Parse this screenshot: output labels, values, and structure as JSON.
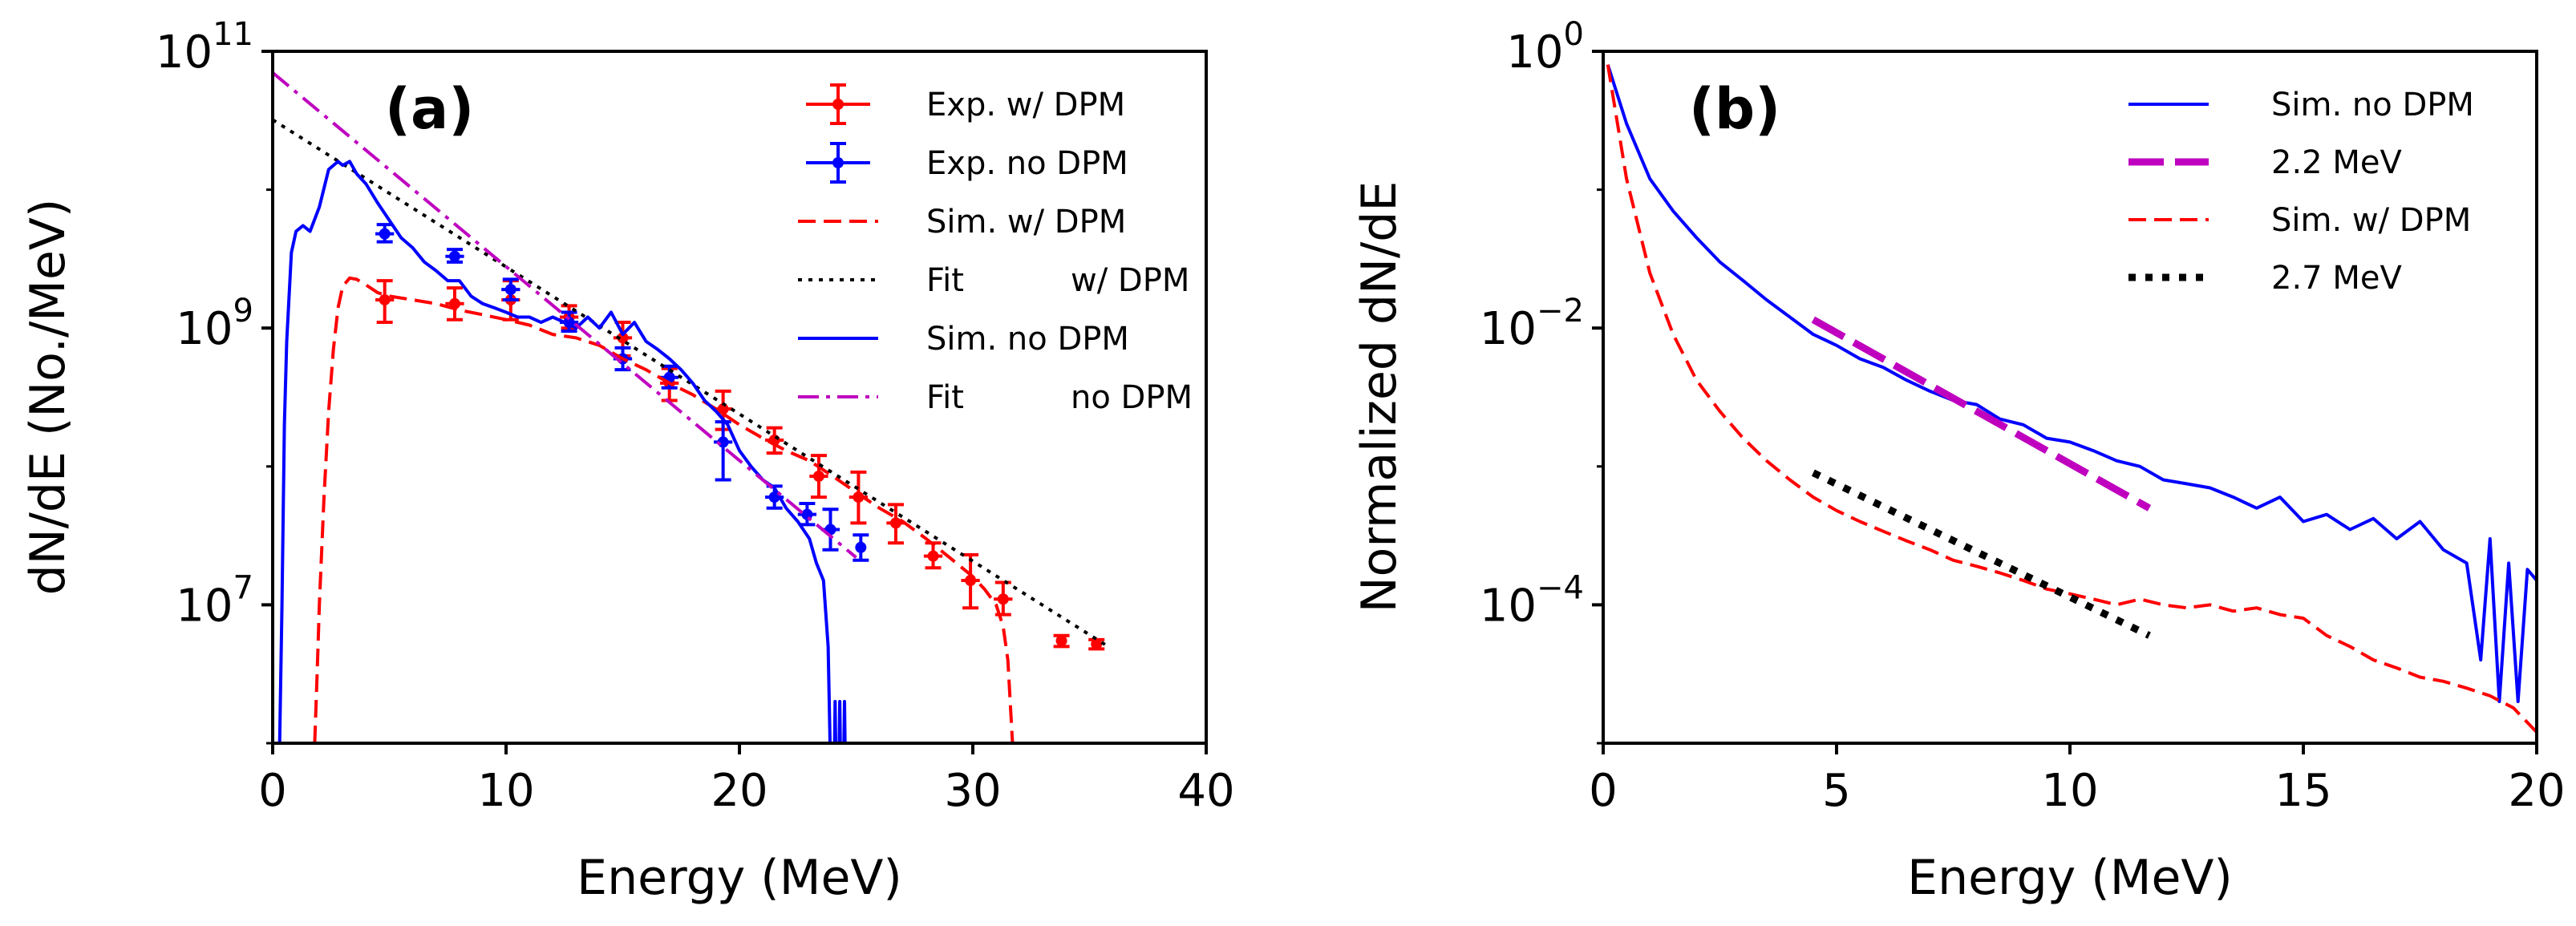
{
  "chart_data": [
    {
      "id": "a",
      "type": "line",
      "panel_label": "(a)",
      "xlabel": "Energy (MeV)",
      "ylabel": "dN/dE (No./MeV)",
      "xscale": "linear",
      "yscale": "log",
      "xlim": [
        0,
        40
      ],
      "ylim_log10": [
        6,
        11
      ],
      "xticks": [
        {
          "v": 0,
          "label": "0"
        },
        {
          "v": 10,
          "label": "10"
        },
        {
          "v": 20,
          "label": "20"
        },
        {
          "v": 30,
          "label": "30"
        },
        {
          "v": 40,
          "label": "40"
        }
      ],
      "yticks": [
        {
          "e": 7,
          "base": "10",
          "exp": "7"
        },
        {
          "e": 9,
          "base": "10",
          "exp": "9"
        },
        {
          "e": 11,
          "base": "10",
          "exp": "11"
        }
      ],
      "legend_position": "top-right",
      "series": [
        {
          "name": "Exp. w/ DPM",
          "legend": [
            "Exp. w/ DPM"
          ],
          "kind": "errorbar",
          "color": "#ff0000",
          "points": [
            {
              "x": 4.8,
              "y": 1600000000.0,
              "yerr_low": 1100000000.0,
              "yerr_high": 2200000000.0,
              "xerr": 0.4
            },
            {
              "x": 7.8,
              "y": 1500000000.0,
              "yerr_low": 1150000000.0,
              "yerr_high": 1950000000.0,
              "xerr": 0.4
            },
            {
              "x": 10.2,
              "y": 1600000000.0,
              "yerr_low": 1150000000.0,
              "yerr_high": 2200000000.0,
              "xerr": 0.4
            },
            {
              "x": 12.7,
              "y": 1200000000.0,
              "yerr_low": 1000000000.0,
              "yerr_high": 1450000000.0,
              "xerr": 0.4
            },
            {
              "x": 15.0,
              "y": 850000000.0,
              "yerr_low": 630000000.0,
              "yerr_high": 1100000000.0,
              "xerr": 0.4
            },
            {
              "x": 17.0,
              "y": 400000000.0,
              "yerr_low": 300000000.0,
              "yerr_high": 510000000.0,
              "xerr": 0.4
            },
            {
              "x": 19.3,
              "y": 260000000.0,
              "yerr_low": 185000000.0,
              "yerr_high": 350000000.0,
              "xerr": 0.4
            },
            {
              "x": 21.5,
              "y": 155000000.0,
              "yerr_low": 125000000.0,
              "yerr_high": 190000000.0,
              "xerr": 0.4
            },
            {
              "x": 23.4,
              "y": 85000000.0,
              "yerr_low": 60000000.0,
              "yerr_high": 120000000.0,
              "xerr": 0.4
            },
            {
              "x": 25.1,
              "y": 60000000.0,
              "yerr_low": 39000000.0,
              "yerr_high": 91000000.0,
              "xerr": 0.4
            },
            {
              "x": 26.7,
              "y": 39000000.0,
              "yerr_low": 28000000.0,
              "yerr_high": 53000000.0,
              "xerr": 0.4
            },
            {
              "x": 28.3,
              "y": 22500000.0,
              "yerr_low": 18500000.0,
              "yerr_high": 28000000.0,
              "xerr": 0.4
            },
            {
              "x": 29.9,
              "y": 15000000.0,
              "yerr_low": 9500000.0,
              "yerr_high": 23000000.0,
              "xerr": 0.4
            },
            {
              "x": 31.3,
              "y": 11000000.0,
              "yerr_low": 8500000.0,
              "yerr_high": 14500000.0,
              "xerr": 0.4
            },
            {
              "x": 33.8,
              "y": 5500000.0,
              "yerr_low": 5000000.0,
              "yerr_high": 6000000.0,
              "xerr": 0.2
            },
            {
              "x": 35.3,
              "y": 5200000.0,
              "yerr_low": 4800000.0,
              "yerr_high": 5600000.0,
              "xerr": 0.2
            }
          ]
        },
        {
          "name": "Exp. no DPM",
          "legend": [
            "Exp. no DPM"
          ],
          "kind": "errorbar",
          "color": "#0000ff",
          "points": [
            {
              "x": 4.8,
              "y": 4800000000.0,
              "yerr_low": 4200000000.0,
              "yerr_high": 5600000000.0,
              "xerr": 0.4
            },
            {
              "x": 7.8,
              "y": 3300000000.0,
              "yerr_low": 3000000000.0,
              "yerr_high": 3700000000.0,
              "xerr": 0.4
            },
            {
              "x": 10.2,
              "y": 1900000000.0,
              "yerr_low": 1600000000.0,
              "yerr_high": 2250000000.0,
              "xerr": 0.4
            },
            {
              "x": 12.7,
              "y": 1100000000.0,
              "yerr_low": 950000000.0,
              "yerr_high": 1300000000.0,
              "xerr": 0.4
            },
            {
              "x": 15.0,
              "y": 600000000.0,
              "yerr_low": 500000000.0,
              "yerr_high": 720000000.0,
              "xerr": 0.4
            },
            {
              "x": 17.0,
              "y": 440000000.0,
              "yerr_low": 370000000.0,
              "yerr_high": 530000000.0,
              "xerr": 0.4
            },
            {
              "x": 19.3,
              "y": 150000000.0,
              "yerr_low": 80000000.0,
              "yerr_high": 210000000.0,
              "xerr": 0.4
            },
            {
              "x": 21.5,
              "y": 60000000.0,
              "yerr_low": 50000000.0,
              "yerr_high": 72000000.0,
              "xerr": 0.4
            },
            {
              "x": 22.9,
              "y": 45000000.0,
              "yerr_low": 38000000.0,
              "yerr_high": 54000000.0,
              "xerr": 0.4
            },
            {
              "x": 23.9,
              "y": 35000000.0,
              "yerr_low": 25000000.0,
              "yerr_high": 49000000.0,
              "xerr": 0.4
            },
            {
              "x": 25.2,
              "y": 26000000.0,
              "yerr_low": 21000000.0,
              "yerr_high": 32000000.0,
              "xerr": 0.2
            }
          ]
        },
        {
          "name": "Sim. w/ DPM",
          "legend": [
            "Sim. w/ DPM"
          ],
          "kind": "line",
          "style": "dashed",
          "color": "#ff0000",
          "x": [
            1.8,
            1.9,
            2.0,
            2.2,
            2.4,
            2.6,
            2.8,
            3.0,
            3.3,
            3.6,
            4.0,
            4.5,
            5.0,
            6.0,
            7.0,
            8.0,
            9.0,
            10.0,
            11.0,
            12.0,
            13.0,
            14.0,
            15.0,
            16.0,
            17.0,
            18.0,
            19.0,
            20.0,
            21.0,
            22.0,
            23.0,
            24.0,
            25.0,
            26.0,
            27.0,
            28.0,
            29.0,
            30.0,
            30.5,
            31.0,
            31.3,
            31.5,
            31.6,
            31.7,
            31.8,
            31.9
          ],
          "y": [
            1000000.0,
            3000000.0,
            10000000.0,
            60000000.0,
            250000000.0,
            700000000.0,
            1400000000.0,
            2000000000.0,
            2300000000.0,
            2250000000.0,
            2050000000.0,
            1800000000.0,
            1700000000.0,
            1600000000.0,
            1500000000.0,
            1350000000.0,
            1250000000.0,
            1150000000.0,
            1050000000.0,
            900000000.0,
            850000000.0,
            750000000.0,
            600000000.0,
            500000000.0,
            400000000.0,
            330000000.0,
            260000000.0,
            200000000.0,
            160000000.0,
            130000000.0,
            110000000.0,
            85000000.0,
            65000000.0,
            50000000.0,
            40000000.0,
            30000000.0,
            22000000.0,
            16000000.0,
            13000000.0,
            10000000.0,
            7000000.0,
            4000000.0,
            2000000.0,
            1000000.0,
            400000.0,
            100000.0
          ]
        },
        {
          "name": "Fit w/ DPM",
          "legend": [
            "Fit",
            "w/ DPM"
          ],
          "kind": "line",
          "style": "dotted",
          "color": "#000000",
          "x": [
            0,
            35.8
          ],
          "y": [
            32000000000.0,
            5000000.0
          ]
        },
        {
          "name": "Sim. no DPM",
          "legend": [
            "Sim. no DPM"
          ],
          "kind": "line",
          "style": "solid",
          "color": "#0000ff",
          "x": [
            0.3,
            0.4,
            0.5,
            0.6,
            0.8,
            1.0,
            1.3,
            1.6,
            2.0,
            2.4,
            2.8,
            3.0,
            3.3,
            3.6,
            4.0,
            4.5,
            5.0,
            5.5,
            6.0,
            6.5,
            7.0,
            7.5,
            8.0,
            8.5,
            9.0,
            9.5,
            10.0,
            10.5,
            11.0,
            11.5,
            12.0,
            12.5,
            13.0,
            13.5,
            14.0,
            14.5,
            15.0,
            15.5,
            16.0,
            16.5,
            17.0,
            17.5,
            18.0,
            18.5,
            19.0,
            19.5,
            20.0,
            20.5,
            21.0,
            21.5,
            22.0,
            22.5,
            23.0,
            23.3,
            23.6,
            23.8,
            24.0,
            24.1,
            24.2,
            24.3,
            24.4,
            24.5,
            24.6
          ],
          "y": [
            1000000.0,
            10000000.0,
            200000000.0,
            800000000.0,
            3500000000.0,
            5000000000.0,
            5500000000.0,
            5000000000.0,
            7500000000.0,
            14000000000.0,
            16000000000.0,
            15000000000.0,
            16000000000.0,
            13000000000.0,
            11000000000.0,
            8000000000.0,
            6000000000.0,
            4500000000.0,
            3800000000.0,
            3000000000.0,
            2600000000.0,
            2200000000.0,
            2200000000.0,
            1700000000.0,
            1500000000.0,
            1400000000.0,
            1300000000.0,
            1200000000.0,
            1200000000.0,
            1100000000.0,
            1200000000.0,
            1100000000.0,
            1000000000.0,
            1200000000.0,
            1000000000.0,
            1300000000.0,
            900000000.0,
            1100000000.0,
            800000000.0,
            700000000.0,
            600000000.0,
            500000000.0,
            400000000.0,
            300000000.0,
            250000000.0,
            200000000.0,
            130000000.0,
            100000000.0,
            80000000.0,
            70000000.0,
            50000000.0,
            40000000.0,
            30000000.0,
            20000000.0,
            15000000.0,
            5000000.0,
            100000.0,
            2000000.0,
            100000.0,
            2000000.0,
            100000.0,
            2000000.0,
            100000.0
          ]
        },
        {
          "name": "Fit no DPM",
          "legend": [
            "Fit",
            "no DPM"
          ],
          "kind": "line",
          "style": "dashdot",
          "color": "#bf00bf",
          "x": [
            0,
            25.0
          ],
          "y": [
            70000000000.0,
            22000000.0
          ]
        }
      ]
    },
    {
      "id": "b",
      "type": "line",
      "panel_label": "(b)",
      "xlabel": "Energy (MeV)",
      "ylabel": "Normalized dN/dE",
      "xscale": "linear",
      "yscale": "log",
      "xlim": [
        0,
        20
      ],
      "ylim_log10": [
        -5,
        0
      ],
      "xticks": [
        {
          "v": 0,
          "label": "0"
        },
        {
          "v": 5,
          "label": "5"
        },
        {
          "v": 10,
          "label": "10"
        },
        {
          "v": 15,
          "label": "15"
        },
        {
          "v": 20,
          "label": "20"
        }
      ],
      "yticks": [
        {
          "e": 0,
          "base": "10",
          "exp": "0"
        },
        {
          "e": -2,
          "base": "10",
          "exp": "−2"
        },
        {
          "e": -4,
          "base": "10",
          "exp": "−4"
        }
      ],
      "legend_position": "top-right",
      "series": [
        {
          "name": "Sim. no DPM",
          "legend": [
            "Sim. no DPM"
          ],
          "kind": "line",
          "style": "solid",
          "color": "#0000ff",
          "x": [
            0.1,
            0.5,
            1.0,
            1.5,
            2.0,
            2.5,
            3.0,
            3.5,
            4.0,
            4.5,
            5.0,
            5.5,
            6.0,
            6.5,
            7.0,
            7.5,
            8.0,
            8.5,
            9.0,
            9.5,
            10.0,
            10.5,
            11.0,
            11.5,
            12.0,
            12.5,
            13.0,
            13.5,
            14.0,
            14.5,
            15.0,
            15.5,
            16.0,
            16.5,
            17.0,
            17.5,
            18.0,
            18.5,
            18.8,
            19.0,
            19.2,
            19.4,
            19.6,
            19.8,
            20.0
          ],
          "y": [
            0.8,
            0.3,
            0.12,
            0.07,
            0.045,
            0.03,
            0.022,
            0.016,
            0.012,
            0.009,
            0.0075,
            0.006,
            0.0052,
            0.0042,
            0.0035,
            0.003,
            0.0028,
            0.0022,
            0.002,
            0.0016,
            0.0015,
            0.0013,
            0.0011,
            0.001,
            0.0008,
            0.00075,
            0.0007,
            0.0006,
            0.0005,
            0.0006,
            0.0004,
            0.00045,
            0.00035,
            0.00042,
            0.0003,
            0.0004,
            0.00025,
            0.0002,
            4e-05,
            0.0003,
            2e-05,
            0.0002,
            2e-05,
            0.00018,
            0.00015
          ]
        },
        {
          "name": "2.2 MeV",
          "legend": [
            "2.2 MeV"
          ],
          "kind": "line",
          "style": "dashed",
          "color": "#bf00bf",
          "x": [
            4.5,
            11.7
          ],
          "y": [
            0.0115,
            0.0005
          ]
        },
        {
          "name": "Sim. w/ DPM",
          "legend": [
            "Sim. w/ DPM"
          ],
          "kind": "line",
          "style": "dashed",
          "color": "#ff0000",
          "x": [
            0.1,
            0.5,
            1.0,
            1.5,
            2.0,
            2.5,
            3.0,
            3.5,
            4.0,
            4.5,
            5.0,
            5.5,
            6.0,
            6.5,
            7.0,
            7.5,
            8.0,
            8.5,
            9.0,
            9.5,
            10.0,
            10.5,
            11.0,
            11.5,
            12.0,
            12.5,
            13.0,
            13.5,
            14.0,
            14.5,
            15.0,
            15.5,
            16.0,
            16.5,
            17.0,
            17.5,
            18.0,
            18.5,
            19.0,
            19.5,
            20.0
          ],
          "y": [
            0.8,
            0.12,
            0.025,
            0.009,
            0.0042,
            0.0025,
            0.0016,
            0.0011,
            0.0008,
            0.0006,
            0.00048,
            0.0004,
            0.00034,
            0.00029,
            0.00025,
            0.00021,
            0.00019,
            0.00017,
            0.00015,
            0.00013,
            0.00012,
            0.00011,
            0.0001,
            0.00011,
            0.0001,
            9.5e-05,
            0.0001,
            9e-05,
            9.5e-05,
            8.5e-05,
            8e-05,
            6e-05,
            5e-05,
            4e-05,
            3.5e-05,
            3e-05,
            2.8e-05,
            2.5e-05,
            2.2e-05,
            1.8e-05,
            1.2e-05
          ]
        },
        {
          "name": "2.7 MeV",
          "legend": [
            "2.7 MeV"
          ],
          "kind": "line",
          "style": "dotted",
          "color": "#000000",
          "x": [
            4.5,
            11.7
          ],
          "y": [
            0.0009,
            6e-05
          ]
        }
      ]
    }
  ]
}
